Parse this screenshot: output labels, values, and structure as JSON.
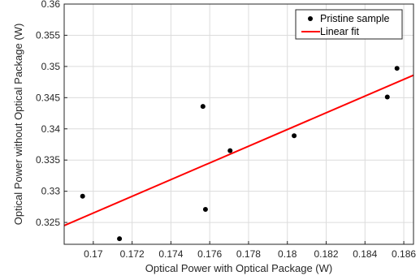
{
  "chart_data": {
    "type": "scatter",
    "xlabel": "Optical Power with Optical Package (W)",
    "ylabel": "Optical Power without Optical Package (W)",
    "xlim": [
      0.1685,
      0.1865
    ],
    "ylim": [
      0.3215,
      0.36
    ],
    "xticks": [
      0.17,
      0.172,
      0.174,
      0.176,
      0.178,
      0.18,
      0.182,
      0.184,
      0.186
    ],
    "xtick_labels": [
      "0.17",
      "0.172",
      "0.174",
      "0.176",
      "0.178",
      "0.18",
      "0.182",
      "0.184",
      "0.186"
    ],
    "yticks": [
      0.325,
      0.33,
      0.335,
      0.34,
      0.345,
      0.35,
      0.355,
      0.36
    ],
    "ytick_labels": [
      "0.325",
      "0.33",
      "0.335",
      "0.34",
      "0.345",
      "0.35",
      "0.355",
      "0.36"
    ],
    "grid": true,
    "legend_position": "top-right",
    "series": [
      {
        "name": "Pristine sample",
        "kind": "scatter",
        "color": "#000000",
        "points": [
          {
            "x": 0.16945,
            "y": 0.3292
          },
          {
            "x": 0.17135,
            "y": 0.3224
          },
          {
            "x": 0.17565,
            "y": 0.3436
          },
          {
            "x": 0.17578,
            "y": 0.3271
          },
          {
            "x": 0.17705,
            "y": 0.3365
          },
          {
            "x": 0.18035,
            "y": 0.3389
          },
          {
            "x": 0.18515,
            "y": 0.3451
          },
          {
            "x": 0.18565,
            "y": 0.3497
          }
        ]
      },
      {
        "name": "Linear fit",
        "kind": "line",
        "color": "#ff0000",
        "points": [
          {
            "x": 0.1685,
            "y": 0.3245
          },
          {
            "x": 0.1865,
            "y": 0.3486
          }
        ]
      }
    ]
  }
}
